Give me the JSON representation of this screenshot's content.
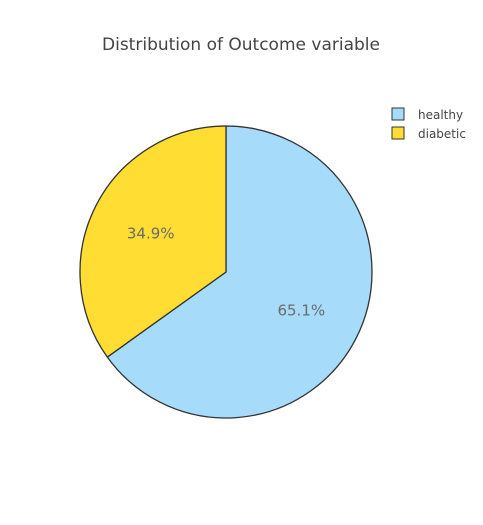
{
  "chart_data": {
    "type": "pie",
    "title": "Distribution of Outcome variable",
    "slices": [
      {
        "label": "healthy",
        "value": 65.1,
        "text": "65.1%",
        "color": "#a6dbfa"
      },
      {
        "label": "diabetic",
        "value": 34.9,
        "text": "34.9%",
        "color": "#ffdd33"
      }
    ],
    "legend_position": "top-right",
    "slice_border_color": "#333333"
  }
}
